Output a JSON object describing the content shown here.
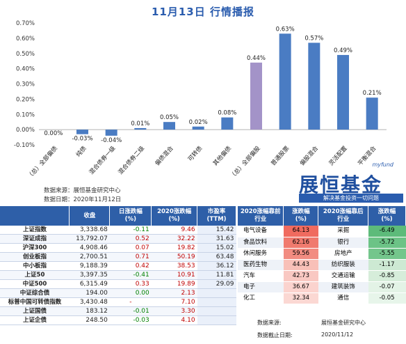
{
  "title": "11月13日 行情播报",
  "chart_data": {
    "type": "bar",
    "categories": [
      "（总）全部偏债",
      "纯债",
      "混合债券一级",
      "混合债券二级",
      "偏债混合",
      "可转债",
      "其他偏债",
      "（总）全部偏股",
      "普通股票",
      "偏股混合",
      "灵活配置",
      "平衡混合"
    ],
    "values": [
      0.0,
      -0.03,
      -0.04,
      0.01,
      0.05,
      0.02,
      0.08,
      0.44,
      0.63,
      0.57,
      0.49,
      0.21
    ],
    "value_labels": [
      "0.00%",
      "-0.03%",
      "-0.04%",
      "0.01%",
      "0.05%",
      "0.02%",
      "0.08%",
      "0.44%",
      "0.63%",
      "0.57%",
      "0.49%",
      "0.21%"
    ],
    "highlight_index": 7,
    "ylim": [
      -0.1,
      0.7
    ],
    "yticks": [
      "-0.10%",
      "0.00%",
      "0.10%",
      "0.20%",
      "0.30%",
      "0.40%",
      "0.50%",
      "0.60%",
      "0.70%"
    ],
    "colors": {
      "bar": "#4a7cc3",
      "highlight": "#a393c8",
      "title": "#2a5cae"
    }
  },
  "sources": {
    "line1": "数据来源：展恒基金研究中心",
    "line2": "数据日期：2020年11月12日"
  },
  "brand": {
    "tag": "myfund",
    "name": "展恒基金",
    "slogan": "解决基金投资一切问题"
  },
  "index_table": {
    "headers": [
      "",
      "收盘",
      "日涨跌幅\n(%)",
      "2020涨跌幅\n(%)",
      "市盈率\n(TTM)"
    ],
    "rows": [
      {
        "name": "上证指数",
        "close": "3,338.68",
        "day": "-0.11",
        "ytd": "9.46",
        "pe": "15.42"
      },
      {
        "name": "深证成指",
        "close": "13,792.07",
        "day": "0.52",
        "ytd": "32.22",
        "pe": "31.63"
      },
      {
        "name": "沪深300",
        "close": "4,908.46",
        "day": "0.07",
        "ytd": "19.82",
        "pe": "15.02"
      },
      {
        "name": "创业板指",
        "close": "2,700.51",
        "day": "0.71",
        "ytd": "50.19",
        "pe": "63.48"
      },
      {
        "name": "中小板指",
        "close": "9,188.39",
        "day": "0.42",
        "ytd": "38.53",
        "pe": "36.12"
      },
      {
        "name": "上证50",
        "close": "3,397.35",
        "day": "-0.41",
        "ytd": "10.91",
        "pe": "11.81"
      },
      {
        "name": "中证500",
        "close": "6,315.49",
        "day": "0.33",
        "ytd": "19.89",
        "pe": "29.09"
      },
      {
        "name": "中证综合债",
        "close": "194.00",
        "day": "0.00",
        "ytd": "2.13",
        "pe": ""
      },
      {
        "name": "标普中国可转债指数",
        "close": "3,430.48",
        "day": "-",
        "ytd": "7.10",
        "pe": ""
      },
      {
        "name": "上证国债",
        "close": "183.12",
        "day": "-0.01",
        "ytd": "3.30",
        "pe": ""
      },
      {
        "name": "上证企债",
        "close": "248.50",
        "day": "-0.03",
        "ytd": "4.10",
        "pe": ""
      }
    ]
  },
  "industry_table": {
    "headers": [
      "2020涨幅靠前\n行业",
      "涨跌幅\n(%)",
      "2020涨幅靠后\n行业",
      "涨跌幅\n(%)"
    ],
    "rows": [
      {
        "top": "电气设备",
        "top_chg": "64.13",
        "bot": "采掘",
        "bot_chg": "-6.49"
      },
      {
        "top": "食品饮料",
        "top_chg": "62.16",
        "bot": "银行",
        "bot_chg": "-5.72"
      },
      {
        "top": "休闲服务",
        "top_chg": "59.56",
        "bot": "房地产",
        "bot_chg": "-5.55"
      },
      {
        "top": "医药生物",
        "top_chg": "44.43",
        "bot": "纺织服装",
        "bot_chg": "-1.17"
      },
      {
        "top": "汽车",
        "top_chg": "42.73",
        "bot": "交通运输",
        "bot_chg": "-0.85"
      },
      {
        "top": "电子",
        "top_chg": "36.67",
        "bot": "建筑装饰",
        "bot_chg": "-0.07"
      },
      {
        "top": "化工",
        "top_chg": "32.34",
        "bot": "通信",
        "bot_chg": "-0.05"
      }
    ],
    "footer_source_label": "数据来源:",
    "footer_source": "展恒基金研究中心",
    "footer_date_label": "数据截止日期:",
    "footer_date": "2020/11/12"
  }
}
